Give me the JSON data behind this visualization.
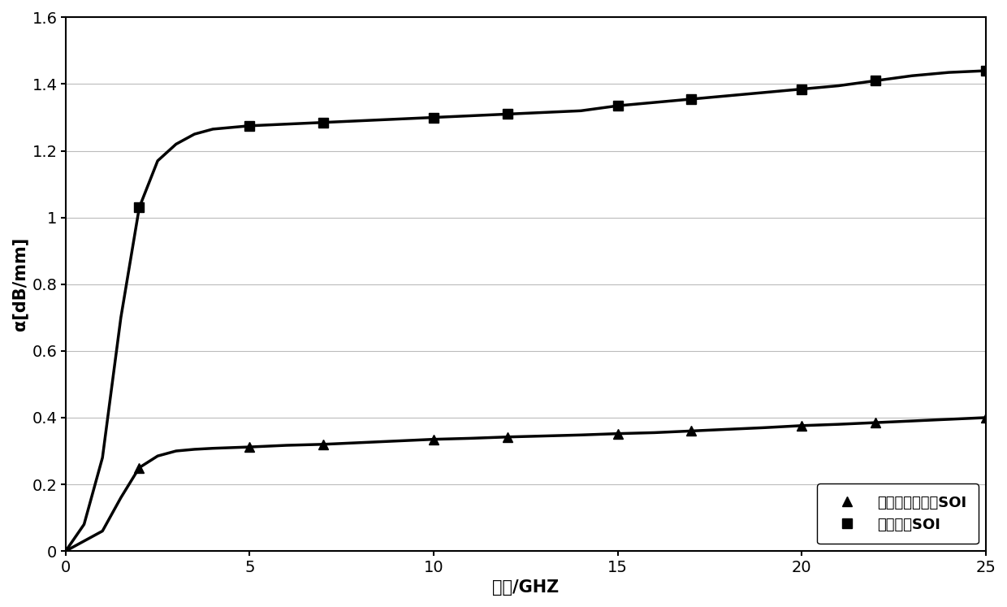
{
  "title": "",
  "xlabel": "频率/GHZ",
  "ylabel": "α[dB/mm]",
  "xlim": [
    0,
    25
  ],
  "ylim": [
    0,
    1.6
  ],
  "xticks": [
    0,
    5,
    10,
    15,
    20,
    25
  ],
  "ytick_vals": [
    0,
    0.2,
    0.4,
    0.6,
    0.8,
    1.0,
    1.2,
    1.4,
    1.6
  ],
  "ytick_labels": [
    "0",
    "0.2",
    "0.4",
    "0.6",
    "0.8",
    "1",
    "1.2",
    "1.4",
    "1.6"
  ],
  "line1_label": "本发明做衬底的SOI",
  "line2_label": "其它衬底SOI",
  "line1_x": [
    0,
    0.5,
    1,
    1.5,
    2,
    2.5,
    3,
    3.5,
    4,
    5,
    6,
    7,
    8,
    9,
    10,
    11,
    12,
    13,
    14,
    15,
    16,
    17,
    18,
    19,
    20,
    21,
    22,
    23,
    24,
    25
  ],
  "line1_y": [
    0,
    0.03,
    0.06,
    0.16,
    0.25,
    0.285,
    0.3,
    0.305,
    0.308,
    0.312,
    0.317,
    0.32,
    0.325,
    0.33,
    0.335,
    0.338,
    0.342,
    0.345,
    0.348,
    0.352,
    0.355,
    0.36,
    0.365,
    0.37,
    0.376,
    0.38,
    0.385,
    0.39,
    0.395,
    0.4
  ],
  "line1_markers_x": [
    2,
    5,
    7,
    10,
    12,
    15,
    17,
    20,
    22,
    25
  ],
  "line1_markers_y": [
    0.25,
    0.312,
    0.32,
    0.335,
    0.342,
    0.352,
    0.36,
    0.376,
    0.385,
    0.4
  ],
  "line2_x": [
    0,
    0.5,
    1,
    1.5,
    2,
    2.5,
    3,
    3.5,
    4,
    5,
    6,
    7,
    8,
    9,
    10,
    11,
    12,
    13,
    14,
    15,
    16,
    17,
    18,
    19,
    20,
    21,
    22,
    23,
    24,
    25
  ],
  "line2_y": [
    0,
    0.08,
    0.28,
    0.7,
    1.03,
    1.17,
    1.22,
    1.25,
    1.265,
    1.275,
    1.28,
    1.285,
    1.29,
    1.295,
    1.3,
    1.305,
    1.31,
    1.315,
    1.32,
    1.335,
    1.345,
    1.355,
    1.365,
    1.375,
    1.385,
    1.395,
    1.41,
    1.425,
    1.435,
    1.44
  ],
  "line2_markers_x": [
    2,
    5,
    7,
    10,
    12,
    15,
    17,
    20,
    22,
    25
  ],
  "line2_markers_y": [
    1.03,
    1.275,
    1.285,
    1.3,
    1.31,
    1.335,
    1.355,
    1.385,
    1.41,
    1.44
  ],
  "line_color": "#000000",
  "line_width": 2.5,
  "marker_size": 8,
  "bg_color": "#ffffff",
  "grid_color": "#bbbbbb",
  "font_size_label": 15,
  "font_size_tick": 14,
  "font_size_legend": 13
}
